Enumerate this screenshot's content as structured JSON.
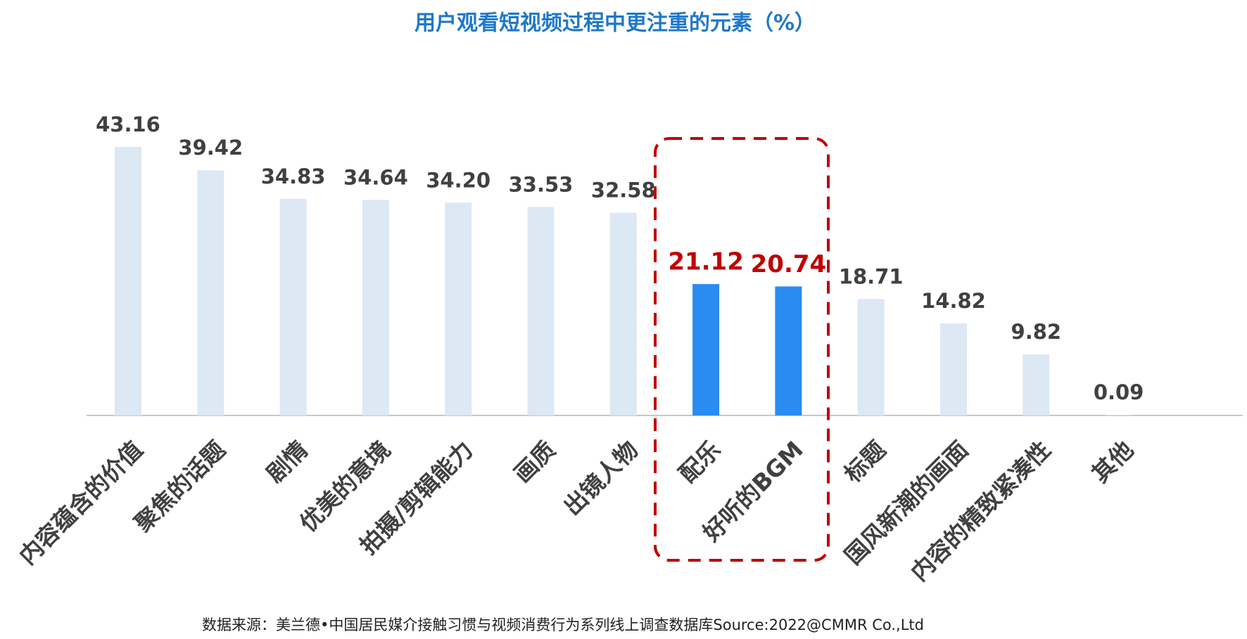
{
  "chart_data": {
    "type": "bar",
    "title": "用户观看短视频过程中更注重的元素（%）",
    "categories": [
      "内容蕴含的价值",
      "聚焦的话题",
      "剧情",
      "优美的意境",
      "拍摄/剪辑能力",
      "画质",
      "出镜人物",
      "配乐",
      "好听的BGM",
      "标题",
      "国风新潮的画面",
      "内容的精致紧凑性",
      "其他"
    ],
    "values": [
      43.16,
      39.42,
      34.83,
      34.64,
      34.2,
      33.53,
      32.58,
      21.12,
      20.74,
      18.71,
      14.82,
      9.82,
      0.09
    ],
    "value_labels": [
      "43.16",
      "39.42",
      "34.83",
      "34.64",
      "34.20",
      "33.53",
      "32.58",
      "21.12",
      "20.74",
      "18.71",
      "14.82",
      "9.82",
      "0.09"
    ],
    "colors": [
      "#dde8f5",
      "#dde8f5",
      "#dde8f5",
      "#dde8f5",
      "#dde8f5",
      "#dde8f5",
      "#dde8f5",
      "#2a8cf0",
      "#2a8cf0",
      "#dde8f5",
      "#dde8f5",
      "#dde8f5",
      "#dde8f5"
    ],
    "value_label_colors": [
      "#404040",
      "#404040",
      "#404040",
      "#404040",
      "#404040",
      "#404040",
      "#404040",
      "#c00000",
      "#c00000",
      "#404040",
      "#404040",
      "#404040",
      "#404040"
    ],
    "source": "数据来源：美兰德•中国居民媒介接触习惯与视频消费行为系列线上调查数据库Source:2022@CMMR Co.,Ltd"
  }
}
